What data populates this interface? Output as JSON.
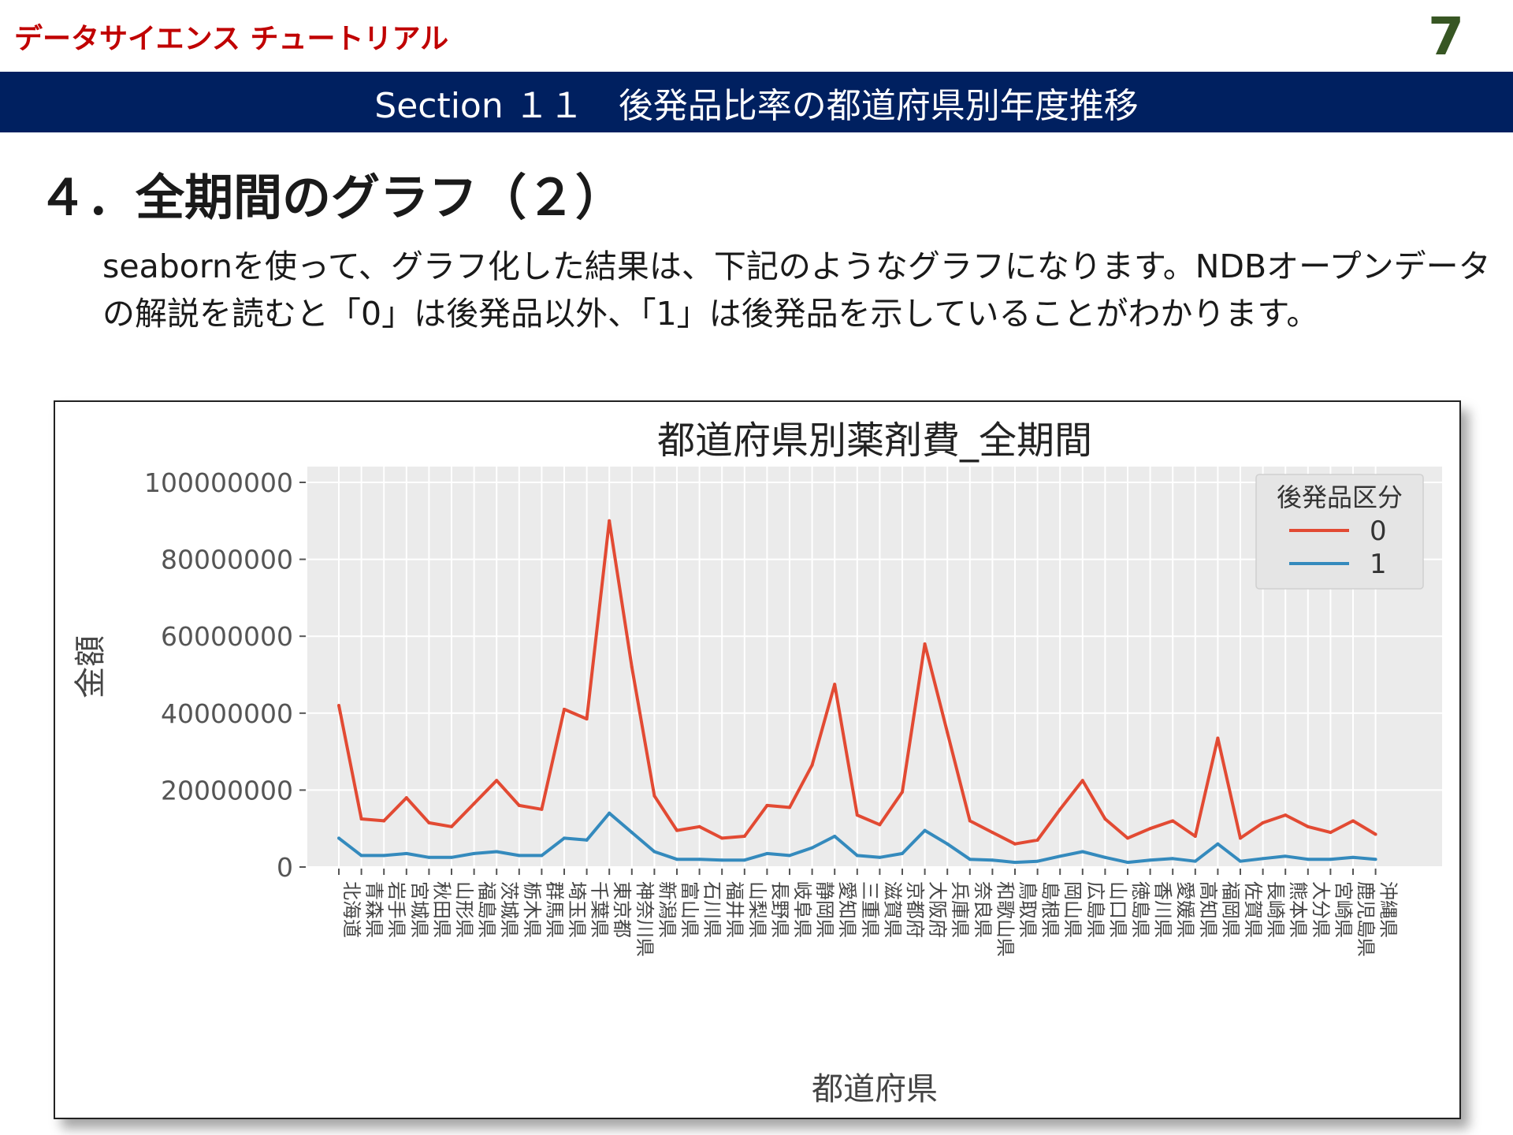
{
  "header": {
    "brand": "データサイエンス チュートリアル",
    "page_number": "7",
    "section_title": "Section １１　後発品比率の都道府県別年度推移"
  },
  "heading": "４．全期間のグラフ（２）",
  "body": {
    "line1": "seabornを使って、グラフ化した結果は、下記のようなグラフになります。NDBオープンデータ",
    "line2": "の解説を読むと「0」は後発品以外、「1」は後発品を示していることがわかります。"
  },
  "colors": {
    "brand": "#c00000",
    "page_number": "#375623",
    "section_bar": "#002060",
    "plot_bg": "#ebebeb",
    "series_0": "#e24a33",
    "series_1": "#348abd"
  },
  "chart_data": {
    "type": "line",
    "title": "都道府県別薬剤費_全期間",
    "xlabel": "都道府県",
    "ylabel": "金額",
    "ylim": [
      0,
      100000000
    ],
    "yticks": [
      "0",
      "20000000",
      "40000000",
      "60000000",
      "80000000",
      "100000000"
    ],
    "ytick_values": [
      0,
      20000000,
      40000000,
      60000000,
      80000000,
      100000000
    ],
    "grid": true,
    "legend": {
      "title": "後発品区分",
      "placement": "top-right"
    },
    "categories": [
      "北海道",
      "青森県",
      "岩手県",
      "宮城県",
      "秋田県",
      "山形県",
      "福島県",
      "茨城県",
      "栃木県",
      "群馬県",
      "埼玉県",
      "千葉県",
      "東京都",
      "神奈川県",
      "新潟県",
      "富山県",
      "石川県",
      "福井県",
      "山梨県",
      "長野県",
      "岐阜県",
      "静岡県",
      "愛知県",
      "三重県",
      "滋賀県",
      "京都府",
      "大阪府",
      "兵庫県",
      "奈良県",
      "和歌山県",
      "鳥取県",
      "島根県",
      "岡山県",
      "広島県",
      "山口県",
      "徳島県",
      "香川県",
      "愛媛県",
      "高知県",
      "福岡県",
      "佐賀県",
      "長崎県",
      "熊本県",
      "大分県",
      "宮崎県",
      "鹿児島県",
      "沖縄県"
    ],
    "series": [
      {
        "name": "0",
        "color": "#e24a33",
        "values": [
          42000000,
          12500000,
          12000000,
          18000000,
          11500000,
          10500000,
          16500000,
          22500000,
          16000000,
          15000000,
          41000000,
          38500000,
          90000000,
          52000000,
          18500000,
          9500000,
          10500000,
          7500000,
          8000000,
          16000000,
          15500000,
          26500000,
          47500000,
          13500000,
          11000000,
          19500000,
          58000000,
          35000000,
          12000000,
          9000000,
          6000000,
          7000000,
          15000000,
          22500000,
          12500000,
          7500000,
          10000000,
          12000000,
          8000000,
          33500000,
          7500000,
          11500000,
          13500000,
          10500000,
          9000000,
          12000000,
          8500000
        ]
      },
      {
        "name": "1",
        "color": "#348abd",
        "values": [
          7500000,
          3000000,
          3000000,
          3500000,
          2500000,
          2500000,
          3500000,
          4000000,
          3000000,
          3000000,
          7500000,
          7000000,
          14000000,
          9000000,
          4000000,
          2000000,
          2000000,
          1800000,
          1800000,
          3500000,
          3000000,
          5000000,
          8000000,
          3000000,
          2500000,
          3500000,
          9500000,
          6000000,
          2000000,
          1800000,
          1200000,
          1500000,
          2800000,
          4000000,
          2500000,
          1200000,
          1800000,
          2200000,
          1500000,
          6000000,
          1500000,
          2200000,
          2800000,
          2000000,
          2000000,
          2500000,
          2000000
        ]
      }
    ]
  }
}
